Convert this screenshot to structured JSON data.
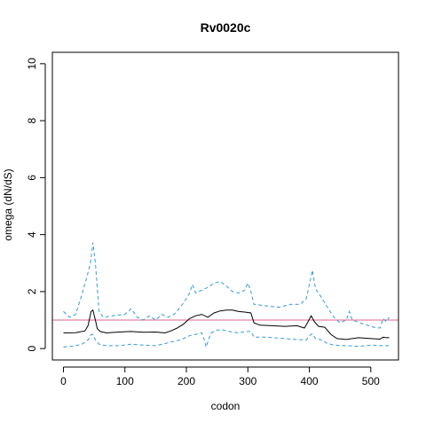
{
  "chart_data": {
    "type": "line",
    "title": "Rv0020c",
    "xlabel": "codon",
    "ylabel": "omega (dN/dS)",
    "xlim": [
      -18,
      545
    ],
    "ylim": [
      -0.4,
      10.4
    ],
    "xticks": [
      0,
      100,
      200,
      300,
      400,
      500
    ],
    "yticks": [
      0,
      2,
      4,
      6,
      8,
      10
    ],
    "grid": false,
    "reference_line": {
      "y": 1,
      "color": "#dd6688"
    },
    "series": [
      {
        "role": "estimate",
        "color": "#000000",
        "style": "solid",
        "x": [
          0,
          20,
          35,
          40,
          45,
          48,
          52,
          55,
          60,
          70,
          90,
          110,
          130,
          150,
          165,
          175,
          185,
          195,
          205,
          215,
          225,
          235,
          245,
          255,
          265,
          275,
          285,
          295,
          305,
          310,
          320,
          340,
          360,
          380,
          392,
          398,
          403,
          408,
          415,
          425,
          435,
          445,
          460,
          480,
          500,
          515,
          520,
          525,
          530
        ],
        "y": [
          0.55,
          0.56,
          0.62,
          0.8,
          1.3,
          1.35,
          1.0,
          0.7,
          0.6,
          0.55,
          0.58,
          0.6,
          0.57,
          0.58,
          0.55,
          0.62,
          0.72,
          0.85,
          1.05,
          1.15,
          1.2,
          1.1,
          1.25,
          1.32,
          1.35,
          1.35,
          1.3,
          1.28,
          1.25,
          0.9,
          0.82,
          0.8,
          0.78,
          0.8,
          0.72,
          0.95,
          1.15,
          0.95,
          0.78,
          0.75,
          0.5,
          0.35,
          0.32,
          0.38,
          0.35,
          0.33,
          0.4,
          0.38,
          0.38
        ]
      },
      {
        "role": "upper",
        "color": "#3399dd",
        "style": "dashed",
        "x": [
          0,
          10,
          20,
          30,
          38,
          44,
          48,
          52,
          58,
          65,
          80,
          100,
          110,
          120,
          130,
          140,
          150,
          160,
          170,
          180,
          190,
          200,
          205,
          210,
          215,
          225,
          235,
          245,
          255,
          265,
          275,
          285,
          295,
          300,
          305,
          310,
          330,
          350,
          370,
          385,
          395,
          400,
          405,
          410,
          418,
          425,
          440,
          450,
          460,
          465,
          470,
          490,
          505,
          515,
          520,
          525,
          530
        ],
        "y": [
          1.3,
          1.1,
          1.2,
          1.9,
          2.5,
          3.0,
          3.72,
          3.0,
          1.3,
          1.1,
          1.15,
          1.2,
          1.4,
          1.1,
          1.0,
          1.15,
          1.0,
          1.2,
          1.1,
          1.2,
          1.45,
          1.75,
          1.95,
          2.25,
          1.95,
          2.05,
          2.15,
          2.3,
          2.35,
          2.2,
          2.0,
          1.95,
          2.05,
          2.3,
          2.0,
          1.55,
          1.5,
          1.45,
          1.55,
          1.55,
          1.75,
          2.25,
          2.75,
          2.1,
          1.85,
          1.6,
          1.1,
          0.9,
          1.0,
          1.3,
          1.0,
          0.85,
          0.75,
          0.72,
          1.05,
          0.95,
          1.1
        ]
      },
      {
        "role": "lower",
        "color": "#3399dd",
        "style": "dashed",
        "x": [
          0,
          20,
          30,
          40,
          45,
          48,
          52,
          58,
          70,
          90,
          110,
          130,
          150,
          170,
          185,
          195,
          205,
          215,
          225,
          230,
          232,
          240,
          250,
          260,
          270,
          285,
          295,
          305,
          310,
          330,
          360,
          380,
          395,
          400,
          405,
          410,
          420,
          430,
          440,
          460,
          480,
          500,
          520,
          530
        ],
        "y": [
          0.05,
          0.1,
          0.15,
          0.3,
          0.48,
          0.5,
          0.3,
          0.15,
          0.1,
          0.1,
          0.15,
          0.12,
          0.1,
          0.2,
          0.28,
          0.35,
          0.45,
          0.5,
          0.55,
          0.25,
          0.05,
          0.55,
          0.65,
          0.65,
          0.6,
          0.55,
          0.6,
          0.6,
          0.4,
          0.4,
          0.35,
          0.32,
          0.3,
          0.45,
          0.52,
          0.35,
          0.3,
          0.18,
          0.12,
          0.1,
          0.08,
          0.12,
          0.1,
          0.1
        ]
      }
    ]
  }
}
